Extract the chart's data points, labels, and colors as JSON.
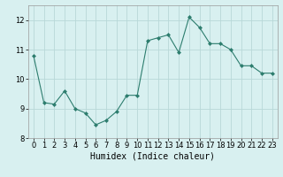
{
  "x": [
    0,
    1,
    2,
    3,
    4,
    5,
    6,
    7,
    8,
    9,
    10,
    11,
    12,
    13,
    14,
    15,
    16,
    17,
    18,
    19,
    20,
    21,
    22,
    23
  ],
  "y": [
    10.8,
    9.2,
    9.15,
    9.6,
    9.0,
    8.85,
    8.45,
    8.6,
    8.9,
    9.45,
    9.45,
    11.3,
    11.4,
    11.5,
    10.9,
    12.1,
    11.75,
    11.2,
    11.2,
    11.0,
    10.45,
    10.45,
    10.2,
    10.2
  ],
  "line_color": "#2d7d6e",
  "marker": "D",
  "marker_size": 2,
  "bg_color": "#d8f0f0",
  "grid_color": "#b8d8d8",
  "xlabel": "Humidex (Indice chaleur)",
  "ylim": [
    8.0,
    12.5
  ],
  "xlim": [
    -0.5,
    23.5
  ],
  "yticks": [
    8,
    9,
    10,
    11,
    12
  ],
  "xticks": [
    0,
    1,
    2,
    3,
    4,
    5,
    6,
    7,
    8,
    9,
    10,
    11,
    12,
    13,
    14,
    15,
    16,
    17,
    18,
    19,
    20,
    21,
    22,
    23
  ],
  "xlabel_fontsize": 7,
  "tick_fontsize": 6
}
